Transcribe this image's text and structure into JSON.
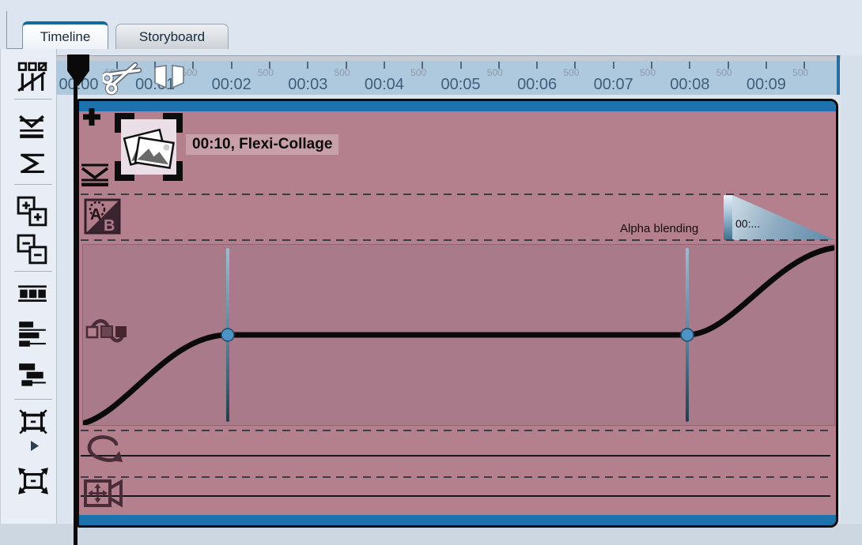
{
  "tabs": [
    {
      "label": "Timeline",
      "active": true
    },
    {
      "label": "Storyboard",
      "active": false
    }
  ],
  "toolbar": {
    "icons": [
      "mouse-mode-objects",
      "insert-ripple-mode",
      "curve-mode",
      "zoom-in-objects",
      "zoom-out-objects",
      "filmstrip-view",
      "track-view",
      "overview-view",
      "optimize-view",
      "optimize-view-flyout",
      "maximize-view"
    ]
  },
  "ruler": {
    "half_label": "500",
    "seconds": [
      "00:00",
      "00:01",
      "00:02",
      "00:03",
      "00:04",
      "00:05",
      "00:06",
      "00:07",
      "00:08",
      "00:09"
    ],
    "overlay_icons": [
      "scissors",
      "split-range-markers"
    ],
    "playhead_position": "00:00"
  },
  "clip": {
    "title": "00:10, Flexi-Collage",
    "duration": "00:10",
    "object_type": "Flexi-Collage",
    "transition": {
      "label": "Alpha blending",
      "duration_text": "00:..."
    },
    "curve": {
      "name": "alpha-blending-envelope",
      "keyframes_seconds": [
        2,
        8
      ],
      "shape": "fade-in, hold at level, fade-out rise at end"
    },
    "row_icons": [
      "add-effect",
      "collapse-track",
      "ab-transition",
      "keyframe-objects",
      "animation-path",
      "camera-pan"
    ]
  },
  "colors": {
    "accent_blue": "#1d72ad",
    "ruler_bg": "#aec9de",
    "clip_bg": "#b5808d",
    "curve_panel_bg": "#a97a89",
    "keyframe_dot": "#4e93c6",
    "tab_active_top": "#166a96"
  }
}
